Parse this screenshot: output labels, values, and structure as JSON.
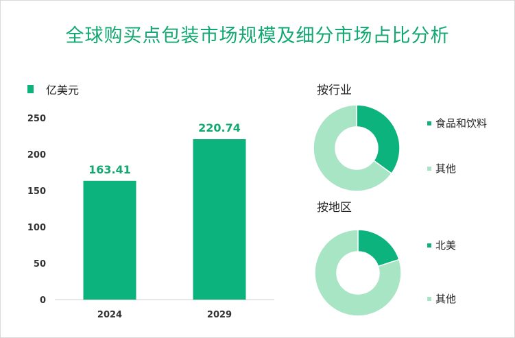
{
  "title": "全球购买点包装市场规模及细分市场占比分析",
  "colors": {
    "primary": "#0db37c",
    "light": "#a8e5c4",
    "title": "#13a772",
    "label": "#13a772"
  },
  "chart_data": [
    {
      "type": "bar",
      "legend": "亿美元",
      "categories": [
        "2024",
        "2029"
      ],
      "values": [
        163.41,
        220.74
      ],
      "data_labels": [
        "163.41",
        "220.74"
      ],
      "ylim": [
        0,
        250
      ],
      "yticks": [
        "0",
        "50",
        "100",
        "150",
        "200",
        "250"
      ],
      "grid": false
    },
    {
      "type": "pie",
      "title": "按行业",
      "labels": [
        "食品和饮料",
        "其他"
      ],
      "values": [
        0.35,
        0.65
      ]
    },
    {
      "type": "pie",
      "title": "按地区",
      "labels": [
        "北美",
        "其他"
      ],
      "values": [
        0.2,
        0.8
      ]
    }
  ]
}
